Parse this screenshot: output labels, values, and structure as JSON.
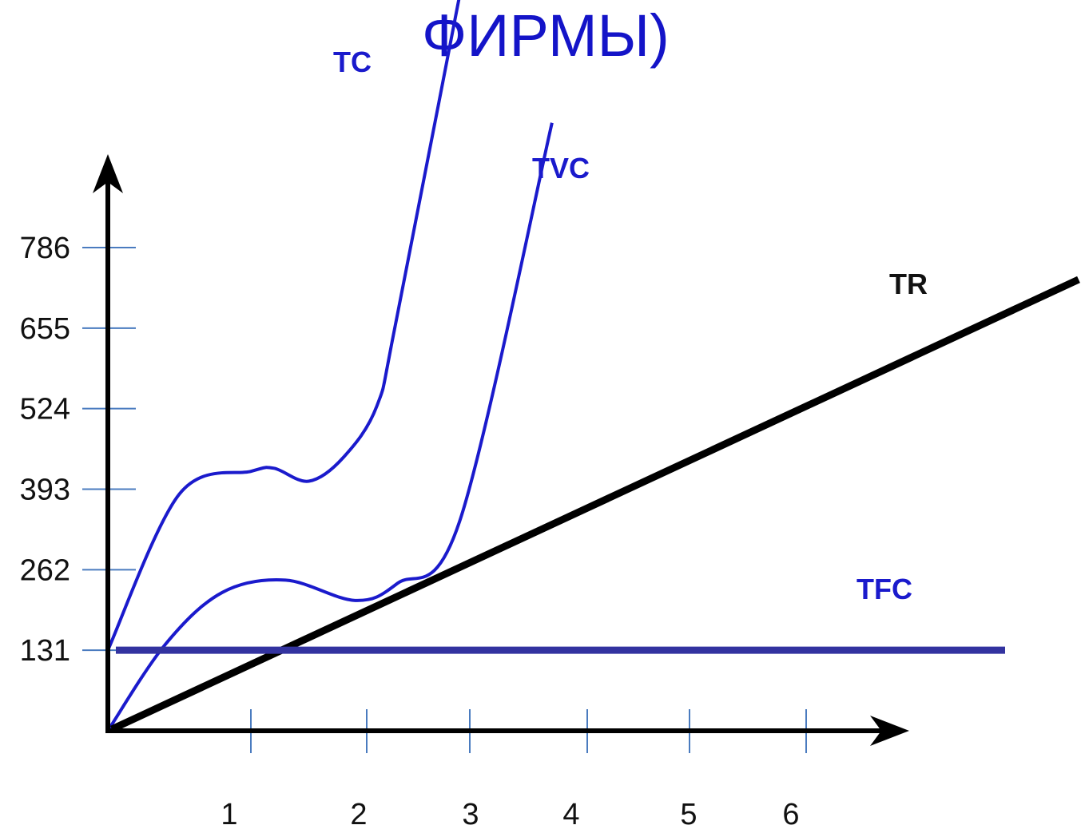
{
  "chart_data": {
    "type": "line",
    "title": "ФИРМЫ)",
    "x_ticks": [
      "1",
      "2",
      "3",
      "4",
      "5",
      "6"
    ],
    "y_ticks": [
      131,
      262,
      393,
      524,
      655,
      786
    ],
    "series": [
      {
        "name": "TC",
        "color": "#1a1acc",
        "points": [
          [
            0.0,
            131
          ],
          [
            0.5,
            385
          ],
          [
            1.0,
            422
          ],
          [
            1.2,
            427
          ],
          [
            1.5,
            406
          ],
          [
            1.8,
            445
          ],
          [
            2.1,
            529
          ],
          [
            2.3,
            679
          ],
          [
            3.1,
            1380
          ]
        ]
      },
      {
        "name": "TVC",
        "color": "#1a1acc",
        "points": [
          [
            0.0,
            0
          ],
          [
            0.4,
            140
          ],
          [
            0.8,
            225
          ],
          [
            1.3,
            245
          ],
          [
            1.9,
            212
          ],
          [
            2.3,
            240
          ],
          [
            2.9,
            340
          ],
          [
            3.7,
            989
          ]
        ]
      },
      {
        "name": "TR",
        "color": "#000000",
        "points": [
          [
            0.0,
            0
          ],
          [
            7.3,
            765
          ]
        ]
      },
      {
        "name": "TFC",
        "color": "#3333a0",
        "points": [
          [
            0.0,
            131
          ],
          [
            7.3,
            131
          ]
        ]
      }
    ]
  }
}
